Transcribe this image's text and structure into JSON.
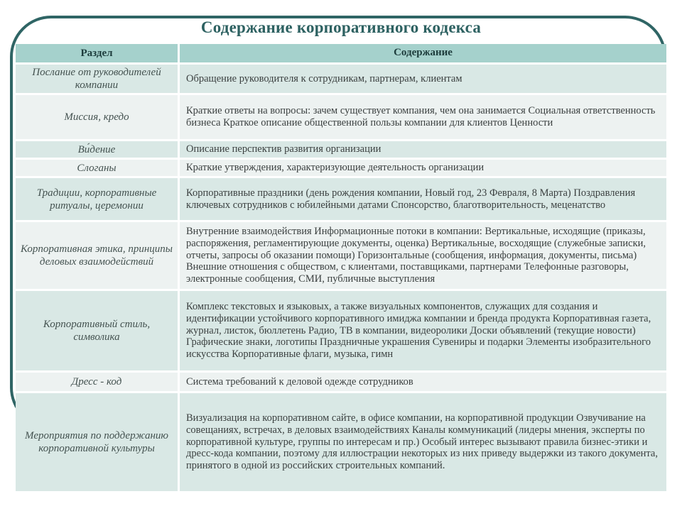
{
  "page": {
    "title": "Содержание корпоративного кодекса"
  },
  "colors": {
    "accent_dark": "#2f6565",
    "title_text": "#2d6161",
    "header_bg": "#a5d1cc",
    "row_teal": "#d9e8e5",
    "row_light": "#edf2f1",
    "body_text": "#3b4040"
  },
  "table": {
    "headers": {
      "section": "Раздел",
      "content": "Содержание"
    },
    "rows": [
      {
        "section": "Послание от руководителей компании",
        "content": "Обращение руководителя к сотрудникам, партнерам, клиентам"
      },
      {
        "section": "Миссия, кредо",
        "content": "Краткие ответы на вопросы: зачем существует компания, чем она занимается Социальная ответственность бизнеса Краткое описание общественной пользы компании для клиентов Ценности"
      },
      {
        "section": "Ви́дение",
        "content": "Описание перспектив развития организации"
      },
      {
        "section": "Слоганы",
        "content": "Краткие утверждения, характеризующие деятельность организации"
      },
      {
        "section": "Традиции, корпоративные ритуалы, церемонии",
        "content": "Корпоративные праздники (день рождения компании, Новый год, 23 Февраля, 8 Марта) Поздравления ключевых сотрудников с юбилейными датами Спонсорство, благотворительность, меценатство"
      },
      {
        "section": "Корпоративная этика, принципы деловых взаимодействий",
        "content": "Внутренние взаимодействия Информационные потоки в компании: Вертикальные, исходящие (приказы, распоряжения, регламентирующие документы, оценка) Вертикальные, восходящие (служебные записки, отчеты, запросы об оказании помощи) Горизонтальные (сообщения, информация, документы, письма) Внешние отношения с обществом, с клиентами, поставщиками, партнерами Телефонные разговоры, электронные сообщения, СМИ, публичные выступления"
      },
      {
        "section": "Корпоративный стиль, символика",
        "content": "Комплекс текстовых и языковых, а также визуальных компонентов, служащих для создания и идентификации устойчивого корпоративного имиджа компании и бренда продукта Корпоративная газета, журнал, листок, бюллетень Радио, ТВ в компании, видеоролики Доски объявлений (текущие новости) Графические знаки, логотипы Праздничные украшения Сувениры и подарки Элементы изобразительного искусства Корпоративные флаги, музыка, гимн"
      },
      {
        "section": "Дресс - код",
        "content": "Система требований к деловой одежде сотрудников"
      },
      {
        "section": "Мероприятия по поддержанию корпоративной культуры",
        "content": "Визуализация на корпоративном сайте, в офисе компании, на корпоративной продукции Озвучивание на совещаниях, встречах, в деловых взаимодействиях Каналы коммуникаций (лидеры мнения, эксперты по корпоративной культуре, группы по интересам и пр.) Особый интерес вызывают правила бизнес-этики и дресс-кода компании, поэтому для иллюстрации некоторых из них приведу выдержки из такого документа, принятого в одной из российских строительных компаний."
      }
    ]
  }
}
